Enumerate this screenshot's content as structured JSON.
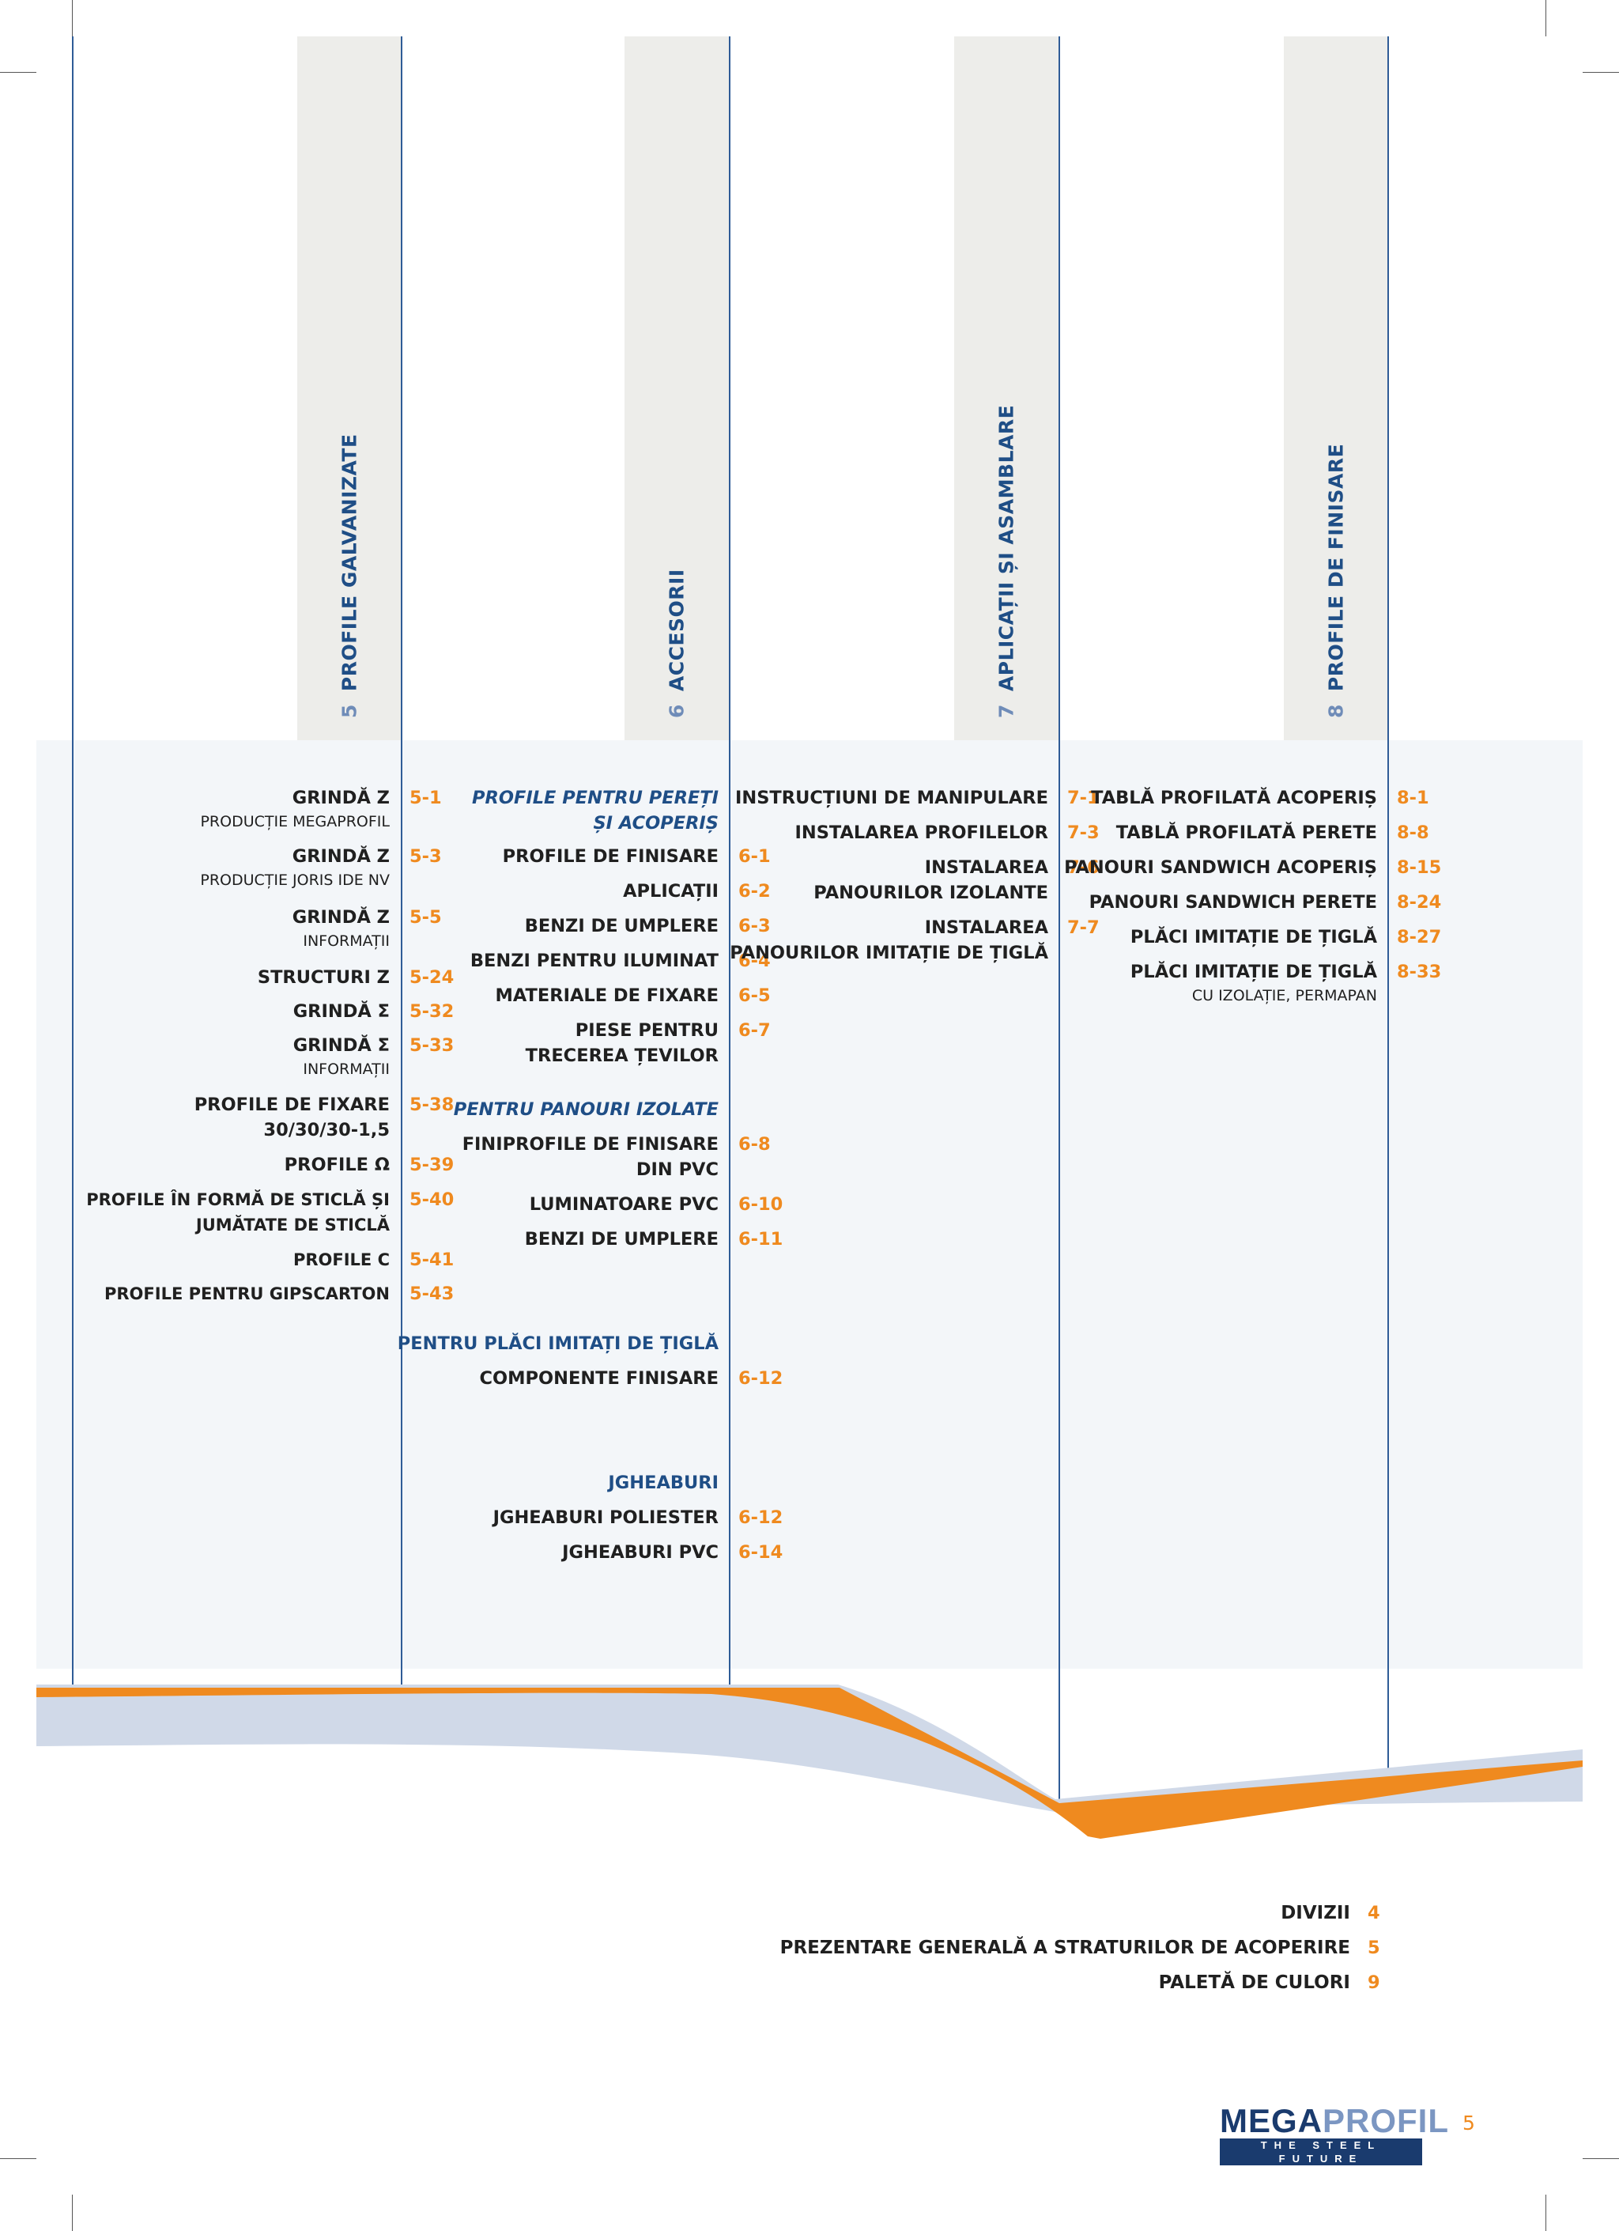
{
  "columns": [
    {
      "num": "5",
      "title": "PROFILE GALVANIZATE"
    },
    {
      "num": "6",
      "title": "ACCESORII"
    },
    {
      "num": "7",
      "title": "APLICAȚII ȘI ASAMBLARE"
    },
    {
      "num": "8",
      "title": "PROFILE DE FINISARE"
    }
  ],
  "col5": [
    {
      "title": "GRINDĂ Z",
      "subtitle": "PRODUCȚIE MEGAPROFIL",
      "page": "5-1"
    },
    {
      "title": "GRINDĂ Z",
      "subtitle": "PRODUCȚIE  JORIS IDE NV",
      "page": "5-3"
    },
    {
      "title": "GRINDĂ Z",
      "subtitle": "INFORMAȚII",
      "page": "5-5"
    },
    {
      "title": "STRUCTURI Z",
      "page": "5-24"
    },
    {
      "title": "GRINDĂ Σ",
      "page": "5-32"
    },
    {
      "title": "GRINDĂ Σ",
      "subtitle": "INFORMAȚII",
      "page": "5-33"
    },
    {
      "title": "PROFILE DE FIXARE",
      "title2": "30/30/30-1,5",
      "page": "5-38"
    },
    {
      "title": "PROFILE Ω",
      "page": "5-39"
    },
    {
      "title": "PROFILE ÎN FORMĂ DE STICLĂ ȘI",
      "title2": "JUMĂTATE DE STICLĂ",
      "page": "5-40"
    },
    {
      "title": "PROFILE C",
      "page": "5-41"
    },
    {
      "title": "PROFILE PENTRU GIPSCARTON",
      "page": "5-43"
    }
  ],
  "col6": {
    "group1_heading": [
      "PROFILE PENTRU PEREȚI",
      "ȘI ACOPERIȘ"
    ],
    "group1": [
      {
        "title": "PROFILE DE FINISARE",
        "page": "6-1"
      },
      {
        "title": "APLICAȚII",
        "page": "6-2"
      },
      {
        "title": "BENZI DE UMPLERE",
        "page": "6-3"
      },
      {
        "title": "BENZI PENTRU ILUMINAT",
        "page": "6-4"
      },
      {
        "title": "MATERIALE DE FIXARE",
        "page": "6-5"
      },
      {
        "title": "PIESE PENTRU",
        "title2": "TRECEREA ȚEVILOR",
        "page": "6-7"
      }
    ],
    "group2_heading": "PENTRU PANOURI IZOLATE",
    "group2": [
      {
        "title": "FINIPROFILE DE FINISARE",
        "title2": "DIN PVC",
        "page": "6-8"
      },
      {
        "title": "LUMINATOARE PVC",
        "page": "6-10"
      },
      {
        "title": "BENZI DE UMPLERE",
        "page": "6-11"
      }
    ],
    "group3_heading": "PENTRU PLĂCI IMITAȚI DE ȚIGLĂ",
    "group3": [
      {
        "title": "COMPONENTE FINISARE",
        "page": "6-12"
      }
    ],
    "group4_heading": "JGHEABURI",
    "group4": [
      {
        "title": "JGHEABURI POLIESTER",
        "page": "6-12"
      },
      {
        "title": "JGHEABURI PVC",
        "page": "6-14"
      }
    ]
  },
  "col7": [
    {
      "title": "INSTRUCȚIUNI DE MANIPULARE",
      "page": "7-1"
    },
    {
      "title": "INSTALAREA PROFILELOR",
      "page": "7-3"
    },
    {
      "title": "INSTALAREA",
      "title2": "PANOURILOR IZOLANTE",
      "page": "7-6"
    },
    {
      "title": "INSTALAREA",
      "title2": "PANOURILOR IMITAȚIE DE ȚIGLĂ",
      "page": "7-7"
    }
  ],
  "col8": [
    {
      "title": "TABLĂ PROFILATĂ ACOPERIȘ",
      "page": "8-1"
    },
    {
      "title": "TABLĂ PROFILATĂ PERETE",
      "page": "8-8"
    },
    {
      "title": "PANOURI SANDWICH ACOPERIȘ",
      "page": "8-15"
    },
    {
      "title": "PANOURI SANDWICH PERETE",
      "page": "8-24"
    },
    {
      "title": "PLĂCI IMITAȚIE DE ȚIGLĂ",
      "page": "8-27"
    },
    {
      "title": "PLĂCI IMITAȚIE DE ȚIGLĂ",
      "subtitle": "CU IZOLAȚIE, PERMAPAN",
      "page": "8-33"
    }
  ],
  "footer_toc": [
    {
      "title": "DIVIZII",
      "page": "4"
    },
    {
      "title": "PREZENTARE GENERALĂ A STRATURILOR DE ACOPERIRE",
      "page": "5"
    },
    {
      "title": "PALETĂ DE CULORI",
      "page": "9"
    }
  ],
  "logo": {
    "main_a": "MEGA",
    "main_b": "PROFIL",
    "tagline": "THE STEEL FUTURE"
  },
  "page_number": "5",
  "colors": {
    "navy": "#1f4e86",
    "orange": "#ef8a1f",
    "tab_gray": "#ededea",
    "panel": "#f3f6f9",
    "wave": "#d0d9e8"
  }
}
